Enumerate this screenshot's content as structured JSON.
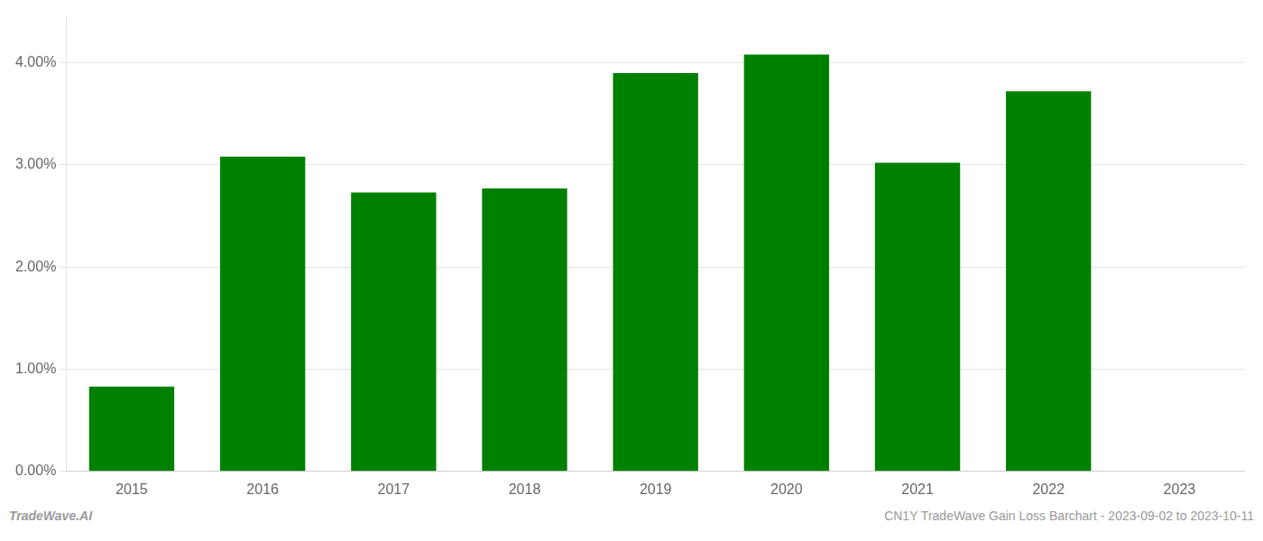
{
  "chart_data": {
    "type": "bar",
    "categories": [
      "2015",
      "2016",
      "2017",
      "2018",
      "2019",
      "2020",
      "2021",
      "2022",
      "2023"
    ],
    "values": [
      0.0083,
      0.0308,
      0.0273,
      0.0277,
      0.039,
      0.0408,
      0.0302,
      0.0372,
      0.0
    ],
    "color": "#008000",
    "ylim": [
      0,
      0.0445
    ],
    "yticks": [
      {
        "value": 0,
        "label": "0.00%"
      },
      {
        "value": 0.01,
        "label": "1.00%"
      },
      {
        "value": 0.02,
        "label": "2.00%"
      },
      {
        "value": 0.03,
        "label": "3.00%"
      },
      {
        "value": 0.04,
        "label": "4.00%"
      }
    ],
    "grid": true,
    "annotations": [
      "TradeWave.AI",
      "CN1Y TradeWave Gain Loss Barchart - 2023-09-02 to 2023-10-11"
    ]
  }
}
